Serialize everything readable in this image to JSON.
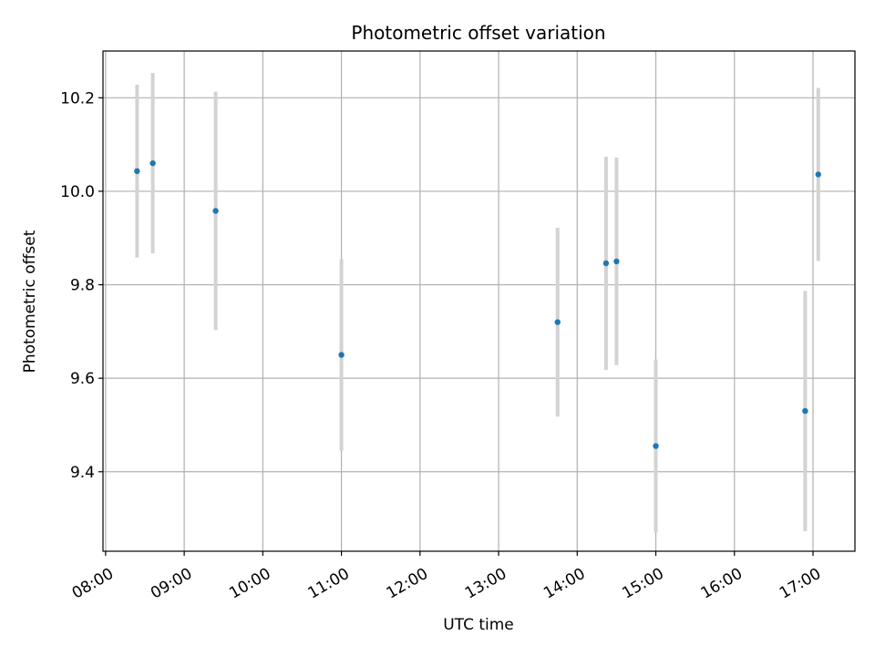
{
  "chart_data": {
    "type": "scatter",
    "title": "Photometric offset variation",
    "xlabel": "UTC time",
    "ylabel": "Photometric offset",
    "x_ticks": [
      "08:00",
      "09:00",
      "10:00",
      "11:00",
      "12:00",
      "13:00",
      "14:00",
      "15:00",
      "16:00",
      "17:00"
    ],
    "y_ticks": [
      "9.4",
      "9.6",
      "9.8",
      "10.0",
      "10.2"
    ],
    "xlim": [
      "07:58",
      "17:32"
    ],
    "ylim": [
      9.23,
      10.3
    ],
    "grid": true,
    "point_color": "#1f77b4",
    "errorbar_color": "#d3d3d3",
    "series": [
      {
        "points": [
          {
            "x": "08:24",
            "y": 10.043,
            "yerr": 0.185
          },
          {
            "x": "08:36",
            "y": 10.06,
            "yerr": 0.193
          },
          {
            "x": "09:24",
            "y": 9.958,
            "yerr": 0.255
          },
          {
            "x": "11:00",
            "y": 9.65,
            "yerr": 0.205
          },
          {
            "x": "13:45",
            "y": 9.72,
            "yerr": 0.202
          },
          {
            "x": "14:22",
            "y": 9.846,
            "yerr": 0.228
          },
          {
            "x": "14:30",
            "y": 9.85,
            "yerr": 0.222
          },
          {
            "x": "15:00",
            "y": 9.455,
            "yerr": 0.185
          },
          {
            "x": "16:54",
            "y": 9.53,
            "yerr": 0.257
          },
          {
            "x": "17:04",
            "y": 10.036,
            "yerr": 0.185
          }
        ]
      }
    ]
  }
}
